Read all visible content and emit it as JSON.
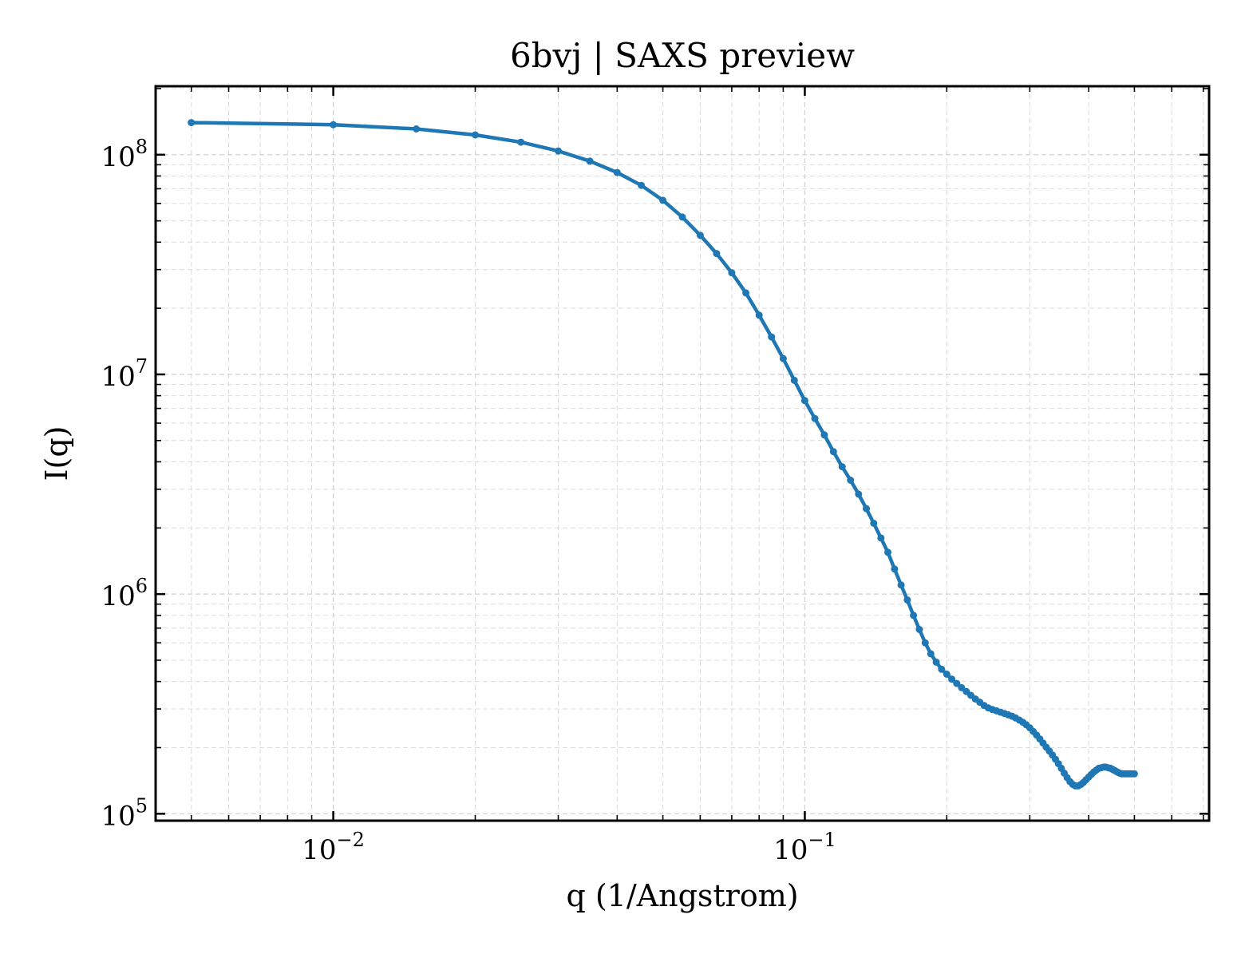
{
  "chart_data": {
    "type": "line",
    "title": "6bvj | SAXS preview",
    "xlabel": "q (1/Angstrom)",
    "ylabel": "I(q)",
    "xscale": "log",
    "yscale": "log",
    "xlim": [
      0.0042,
      0.72
    ],
    "ylim": [
      93000,
      205000000
    ],
    "grid": true,
    "color": "#1f77b4",
    "x_ticks": [
      {
        "value": 0.01,
        "base": "10",
        "exp": "−2"
      },
      {
        "value": 0.1,
        "base": "10",
        "exp": "−1"
      }
    ],
    "y_ticks": [
      {
        "value": 100000,
        "base": "10",
        "exp": "5"
      },
      {
        "value": 1000000,
        "base": "10",
        "exp": "6"
      },
      {
        "value": 10000000,
        "base": "10",
        "exp": "7"
      },
      {
        "value": 100000000,
        "base": "10",
        "exp": "8"
      }
    ],
    "series": [
      {
        "x": [
          0.005,
          0.01,
          0.015,
          0.02,
          0.025,
          0.03,
          0.035,
          0.04,
          0.045,
          0.05,
          0.055,
          0.06,
          0.065,
          0.07,
          0.075,
          0.08,
          0.085,
          0.09,
          0.095,
          0.1,
          0.105,
          0.11,
          0.115,
          0.12,
          0.125,
          0.13,
          0.135,
          0.14,
          0.145,
          0.15,
          0.155,
          0.16,
          0.165,
          0.17,
          0.175,
          0.18,
          0.185,
          0.19,
          0.195,
          0.2,
          0.205,
          0.21,
          0.215,
          0.22,
          0.225,
          0.23,
          0.235,
          0.24,
          0.245,
          0.25,
          0.255,
          0.26,
          0.265,
          0.27,
          0.275,
          0.28,
          0.285,
          0.29,
          0.295,
          0.3,
          0.305,
          0.31,
          0.315,
          0.32,
          0.325,
          0.33,
          0.335,
          0.34,
          0.345,
          0.35,
          0.355,
          0.36,
          0.365,
          0.37,
          0.375,
          0.38,
          0.385,
          0.39,
          0.395,
          0.4,
          0.405,
          0.41,
          0.415,
          0.42,
          0.425,
          0.43,
          0.435,
          0.44,
          0.445,
          0.45,
          0.455,
          0.46,
          0.465,
          0.47,
          0.475,
          0.48,
          0.485,
          0.49,
          0.495,
          0.5
        ],
        "y": [
          140000000,
          137000000,
          131000000,
          123000000,
          114000000,
          104000000,
          93500000,
          83000000,
          72500000,
          62000000,
          52000000,
          43000000,
          35500000,
          29000000,
          23500000,
          18600000,
          14800000,
          11800000,
          9400000,
          7600000,
          6300000,
          5300000,
          4450000,
          3800000,
          3300000,
          2850000,
          2450000,
          2100000,
          1800000,
          1550000,
          1300000,
          1100000,
          940000,
          800000,
          690000,
          600000,
          535000,
          490000,
          455000,
          432000,
          410000,
          392000,
          375000,
          360000,
          346000,
          333000,
          322000,
          311000,
          303000,
          298000,
          294000,
          290000,
          286000,
          282000,
          278000,
          273000,
          267000,
          261000,
          254000,
          246000,
          237000,
          228000,
          219000,
          210000,
          201000,
          193000,
          185000,
          177000,
          169000,
          161000,
          153000,
          146000,
          140000,
          136000,
          134000,
          134000,
          136000,
          139000,
          143000,
          147000,
          151000,
          155000,
          158000,
          161000,
          162000,
          163000,
          163000,
          162000,
          161000,
          159000,
          157000,
          155000,
          153000,
          152000,
          152000,
          152000,
          152000,
          152000,
          152000,
          152000
        ]
      }
    ]
  }
}
